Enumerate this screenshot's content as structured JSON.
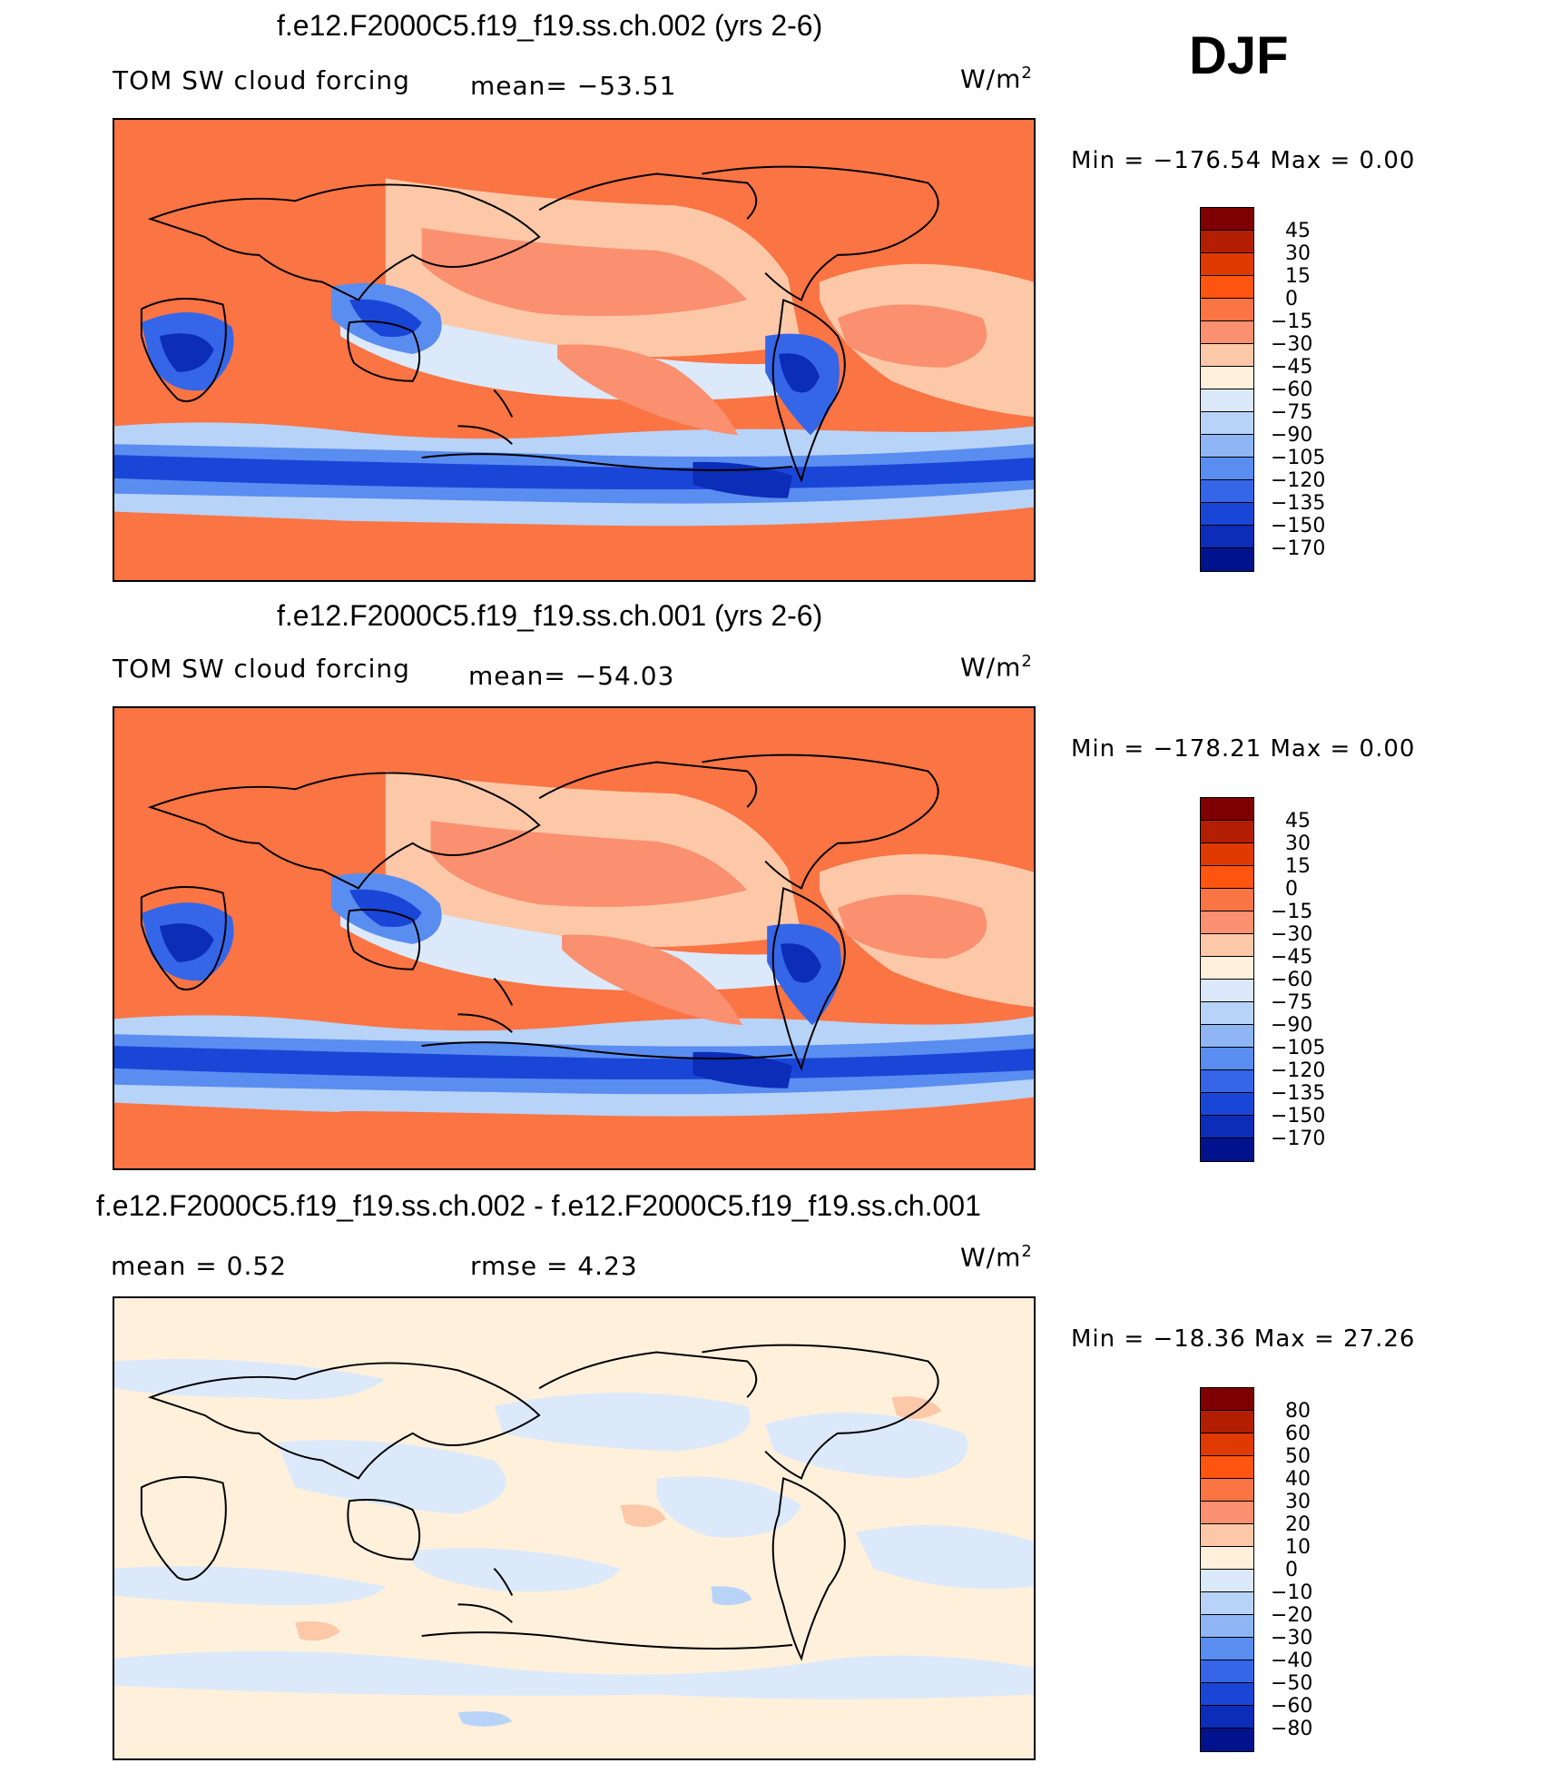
{
  "season": "DJF",
  "panels": [
    {
      "title": "f.e12.F2000C5.f19_f19.ss.ch.002 (yrs 2-6)",
      "left_label": "TOM SW cloud forcing",
      "center_label": "mean= −53.51",
      "units_base": "W/m",
      "units_exp": "2",
      "minmax": "Min  =  −176.54  Max  =     0.00",
      "kind": "field",
      "colorbar": {
        "colors": [
          "#7f0000",
          "#b31e00",
          "#e03a00",
          "#ff5511",
          "#fa7444",
          "#fa9070",
          "#fcc8a8",
          "#fff0dc",
          "#dbe9fb",
          "#b8d3f8",
          "#8fb5f5",
          "#5a8df0",
          "#3566e8",
          "#1a46d8",
          "#0b2db8",
          "#00128c"
        ],
        "labels": [
          "45",
          "30",
          "15",
          "0",
          "−15",
          "−30",
          "−45",
          "−60",
          "−75",
          "−90",
          "−105",
          "−120",
          "−135",
          "−150",
          "−170"
        ]
      }
    },
    {
      "title": "f.e12.F2000C5.f19_f19.ss.ch.001 (yrs 2-6)",
      "left_label": "TOM SW cloud forcing",
      "center_label": "mean= −54.03",
      "units_base": "W/m",
      "units_exp": "2",
      "minmax": "Min  =  −178.21  Max  =     0.00",
      "kind": "field",
      "colorbar": {
        "colors": [
          "#7f0000",
          "#b31e00",
          "#e03a00",
          "#ff5511",
          "#fa7444",
          "#fa9070",
          "#fcc8a8",
          "#fff0dc",
          "#dbe9fb",
          "#b8d3f8",
          "#8fb5f5",
          "#5a8df0",
          "#3566e8",
          "#1a46d8",
          "#0b2db8",
          "#00128c"
        ],
        "labels": [
          "45",
          "30",
          "15",
          "0",
          "−15",
          "−30",
          "−45",
          "−60",
          "−75",
          "−90",
          "−105",
          "−120",
          "−135",
          "−150",
          "−170"
        ]
      }
    },
    {
      "title": "f.e12.F2000C5.f19_f19.ss.ch.002 - f.e12.F2000C5.f19_f19.ss.ch.001",
      "left_label": "mean  =     0.52",
      "center_label": "rmse  =     4.23",
      "units_base": "W/m",
      "units_exp": "2",
      "minmax": "Min  =  −18.36  Max  =    27.26",
      "kind": "diff",
      "colorbar": {
        "colors": [
          "#7f0000",
          "#b31e00",
          "#e03a00",
          "#ff5511",
          "#fa7444",
          "#fa9070",
          "#fcc8a8",
          "#fff0dc",
          "#dbe9fb",
          "#b8d3f8",
          "#8fb5f5",
          "#5a8df0",
          "#3566e8",
          "#1a46d8",
          "#0b2db8",
          "#00128c"
        ],
        "labels": [
          "80",
          "60",
          "50",
          "40",
          "30",
          "20",
          "10",
          "0",
          "−10",
          "−20",
          "−30",
          "−40",
          "−50",
          "−60",
          "−80"
        ]
      }
    }
  ]
}
